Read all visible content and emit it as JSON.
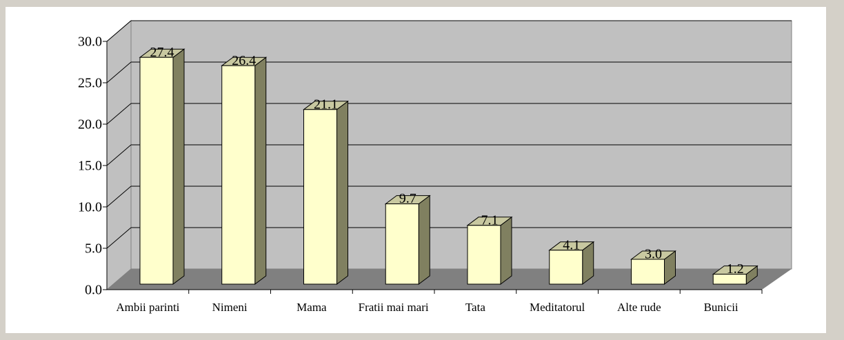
{
  "chart_data": {
    "type": "bar3d",
    "categories": [
      "Ambii parinti",
      "Nimeni",
      "Mama",
      "Fratii mai mari",
      "Tata",
      "Meditatorul",
      "Alte rude",
      "Bunicii"
    ],
    "values": [
      27.4,
      26.4,
      21.1,
      9.7,
      7.1,
      4.1,
      3.0,
      1.2
    ],
    "value_labels": [
      "27.4",
      "26.4",
      "21.1",
      "9.7",
      "7.1",
      "4.1",
      "3.0",
      "1.2"
    ],
    "color": "#ffffcc",
    "ylim": [
      0,
      30
    ],
    "yticks": [
      {
        "value": 0,
        "label": "0.0"
      },
      {
        "value": 5,
        "label": "5.0"
      },
      {
        "value": 10,
        "label": "10.0"
      },
      {
        "value": 15,
        "label": "15.0"
      },
      {
        "value": 20,
        "label": "20.0"
      },
      {
        "value": 25,
        "label": "25.0"
      },
      {
        "value": 30,
        "label": "30.0"
      }
    ],
    "grid": true
  }
}
